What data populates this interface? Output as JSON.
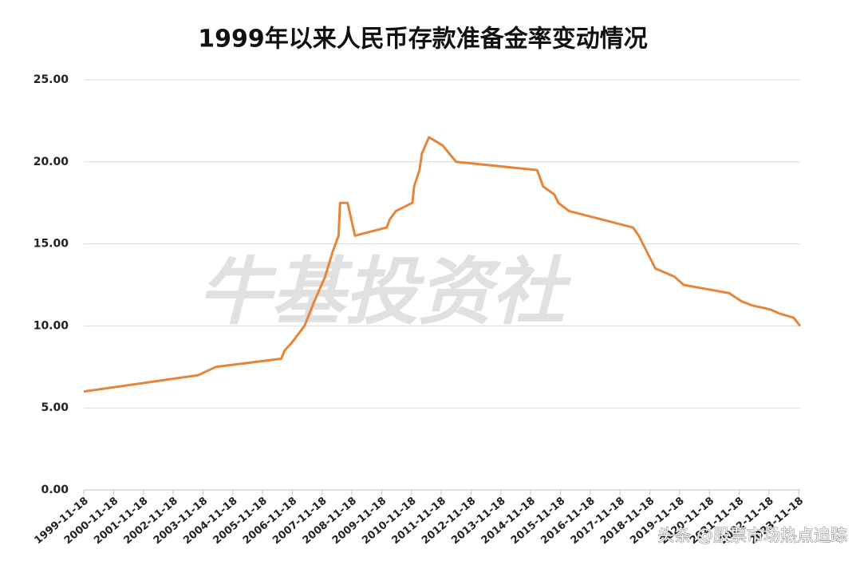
{
  "chart_data": {
    "type": "line",
    "title": "1999年以来人民币存款准备金率变动情况",
    "watermark": "牛基投资社",
    "source_watermark": "头条 @股票市场热点追踪",
    "color": "#e6853a",
    "grid": true,
    "x": [
      "1999-11-18",
      "2003-09-21",
      "2004-04-25",
      "2006-07-05",
      "2006-08-15",
      "2006-11-15",
      "2007-04-16",
      "2007-08-15",
      "2007-12-25",
      "2008-03-25",
      "2008-06-07",
      "2008-06-25",
      "2008-09-25",
      "2008-12-25",
      "2010-01-18",
      "2010-02-25",
      "2010-05-10",
      "2010-11-29",
      "2010-12-20",
      "2011-02-24",
      "2011-03-25",
      "2011-06-20",
      "2011-12-05",
      "2012-05-18",
      "2015-02-05",
      "2015-04-20",
      "2015-09-06",
      "2015-10-24",
      "2016-03-01",
      "2018-04-25",
      "2018-07-05",
      "2018-10-15",
      "2019-01-25",
      "2019-09-16",
      "2020-01-06",
      "2021-07-15",
      "2021-12-15",
      "2022-04-25",
      "2022-12-05",
      "2023-03-27",
      "2023-09-15",
      "2023-12-05"
    ],
    "values": [
      6.0,
      7.0,
      7.5,
      8.0,
      8.5,
      9.0,
      10.0,
      11.5,
      13.0,
      14.5,
      15.5,
      17.5,
      17.5,
      15.5,
      16.0,
      16.5,
      17.0,
      17.5,
      18.5,
      19.5,
      20.5,
      21.5,
      21.0,
      20.0,
      19.5,
      18.5,
      18.0,
      17.5,
      17.0,
      16.0,
      15.5,
      14.5,
      13.5,
      13.0,
      12.5,
      12.0,
      11.5,
      11.25,
      11.0,
      10.75,
      10.5,
      10.0
    ],
    "xlim": [
      "1999-11-18",
      "2023-12-05"
    ],
    "xticks": [
      "1999-11-18",
      "2000-11-18",
      "2001-11-18",
      "2002-11-18",
      "2003-11-18",
      "2004-11-18",
      "2005-11-18",
      "2006-11-18",
      "2007-11-18",
      "2008-11-18",
      "2009-11-18",
      "2010-11-18",
      "2011-11-18",
      "2012-11-18",
      "2013-11-18",
      "2014-11-18",
      "2015-11-18",
      "2016-11-18",
      "2017-11-18",
      "2018-11-18",
      "2019-11-18",
      "2020-11-18",
      "2021-11-18",
      "2022-11-18",
      "2023-11-18"
    ],
    "ylim": [
      0,
      25
    ],
    "yticks": [
      {
        "value": 0,
        "label": "0.00"
      },
      {
        "value": 5,
        "label": "5.00"
      },
      {
        "value": 10,
        "label": "10.00"
      },
      {
        "value": 15,
        "label": "15.00"
      },
      {
        "value": 20,
        "label": "20.00"
      },
      {
        "value": 25,
        "label": "25.00"
      }
    ]
  }
}
